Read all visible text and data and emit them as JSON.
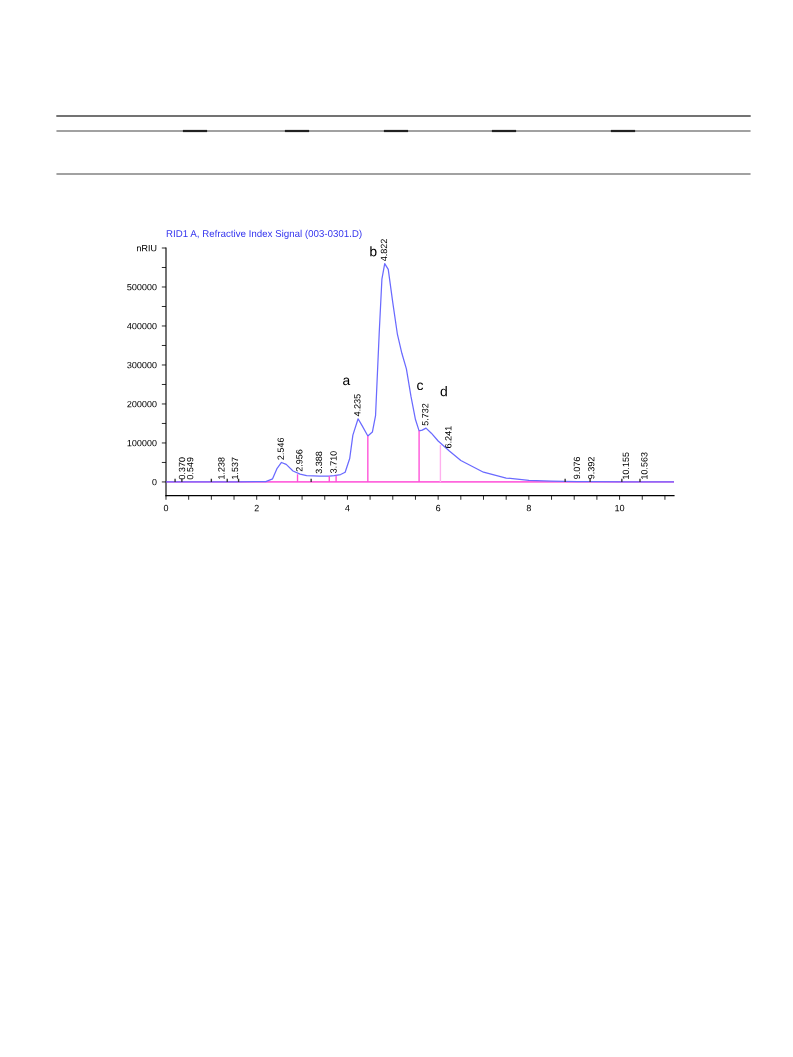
{
  "chart_data": {
    "type": "line",
    "title": "RID1 A, Refractive Index Signal (003-0301.D)",
    "xlim": [
      0,
      11.2
    ],
    "ylim": [
      -35000,
      600000
    ],
    "xticks": [
      0,
      {
        "value": 0.5,
        "label": null
      },
      {
        "value": 1,
        "label": null
      },
      {
        "value": 1.5,
        "label": null
      },
      2,
      {
        "value": 2.5,
        "label": null
      },
      {
        "value": 3,
        "label": null
      },
      {
        "value": 3.5,
        "label": null
      },
      4,
      {
        "value": 4.5,
        "label": null
      },
      {
        "value": 5,
        "label": null
      },
      {
        "value": 5.5,
        "label": null
      },
      6,
      {
        "value": 6.5,
        "label": null
      },
      {
        "value": 7,
        "label": null
      },
      {
        "value": 7.5,
        "label": null
      },
      8,
      {
        "value": 8.5,
        "label": null
      },
      {
        "value": 9,
        "label": null
      },
      {
        "value": 9.5,
        "label": null
      },
      10,
      {
        "value": 10.5,
        "label": null
      },
      {
        "value": 11,
        "label": null
      }
    ],
    "yticks": [
      0,
      {
        "value": 50000,
        "label": null
      },
      100000,
      {
        "value": 150000,
        "label": null
      },
      200000,
      {
        "value": 250000,
        "label": null
      },
      300000,
      {
        "value": 350000,
        "label": null
      },
      400000,
      {
        "value": 450000,
        "label": null
      },
      500000,
      {
        "value": 550000,
        "label": null
      },
      {
        "value": 600000,
        "label": "nRIU"
      }
    ],
    "grid": false,
    "legend": false,
    "marker": "none",
    "line_style": "solid",
    "series": [
      {
        "color": "#6a6aff",
        "x": [
          0,
          0.37,
          0.549,
          1.238,
          1.537,
          2.2,
          2.35,
          2.45,
          2.546,
          2.65,
          2.8,
          2.956,
          3.1,
          3.388,
          3.6,
          3.71,
          3.85,
          3.95,
          4.05,
          4.12,
          4.235,
          4.32,
          4.45,
          4.55,
          4.62,
          4.7,
          4.76,
          4.822,
          4.9,
          5.0,
          5.1,
          5.2,
          5.3,
          5.4,
          5.5,
          5.58,
          5.65,
          5.732,
          5.85,
          6.0,
          6.241,
          6.5,
          7.0,
          7.5,
          8.0,
          8.5,
          9.076,
          9.392,
          10.155,
          10.563,
          11.2
        ],
        "values": [
          0,
          0,
          0,
          0,
          0,
          1000,
          8000,
          35000,
          50000,
          45000,
          28000,
          20000,
          16000,
          15000,
          15000,
          16000,
          19000,
          25000,
          60000,
          120000,
          162000,
          145000,
          118000,
          128000,
          170000,
          380000,
          520000,
          560000,
          545000,
          460000,
          380000,
          330000,
          290000,
          220000,
          160000,
          131000,
          133000,
          138000,
          125000,
          105000,
          80000,
          55000,
          25000,
          10000,
          4000,
          2000,
          1000,
          1000,
          0,
          0,
          0
        ]
      },
      {
        "type": "bar",
        "colors": [
          "#ff4fd8",
          "#ff4fd8",
          "#ff4fd8",
          "#ff4fd8",
          "#ff4fd8",
          "#ffb0ee"
        ],
        "x": [
          2.9,
          3.6,
          3.75,
          4.45,
          5.58,
          6.05
        ],
        "values": [
          20000,
          15000,
          16000,
          118000,
          131000,
          95000
        ]
      },
      {
        "type": "bar",
        "color": "#333333",
        "x": [
          0.2,
          0.35,
          1.0,
          1.35,
          1.6,
          3.2,
          8.8,
          9.35,
          10.05,
          10.45
        ],
        "values": [
          8000,
          8000,
          8000,
          8000,
          8000,
          8000,
          8000,
          8000,
          8000,
          8000
        ]
      }
    ],
    "ref_lines": [
      {
        "axis": "y",
        "value": 0,
        "color": "#ff66dd",
        "line_style": "solid"
      }
    ],
    "annotations": [
      {
        "text": "0.370",
        "x": 0.37,
        "y": 0
      },
      {
        "text": "0.549",
        "x": 0.549,
        "y": 0
      },
      {
        "text": "1.238",
        "x": 1.238,
        "y": 0
      },
      {
        "text": "1.537",
        "x": 1.537,
        "y": 0
      },
      {
        "text": "2.546",
        "x": 2.546,
        "y": 50000
      },
      {
        "text": "2.956",
        "x": 2.956,
        "y": 20000
      },
      {
        "text": "3.388",
        "x": 3.388,
        "y": 15000
      },
      {
        "text": "3.710",
        "x": 3.71,
        "y": 16000
      },
      {
        "text": "4.235",
        "x": 4.235,
        "y": 162000
      },
      {
        "text": "4.822",
        "x": 4.822,
        "y": 560000
      },
      {
        "text": "5.732",
        "x": 5.732,
        "y": 138000
      },
      {
        "text": "6.241",
        "x": 6.241,
        "y": 80000
      },
      {
        "text": "9.076",
        "x": 9.076,
        "y": 1000
      },
      {
        "text": "9.392",
        "x": 9.392,
        "y": 1000
      },
      {
        "text": "10.155",
        "x": 10.155,
        "y": 0
      },
      {
        "text": "10.563",
        "x": 10.563,
        "y": 0
      },
      "a",
      "b",
      "c",
      "d"
    ]
  }
}
